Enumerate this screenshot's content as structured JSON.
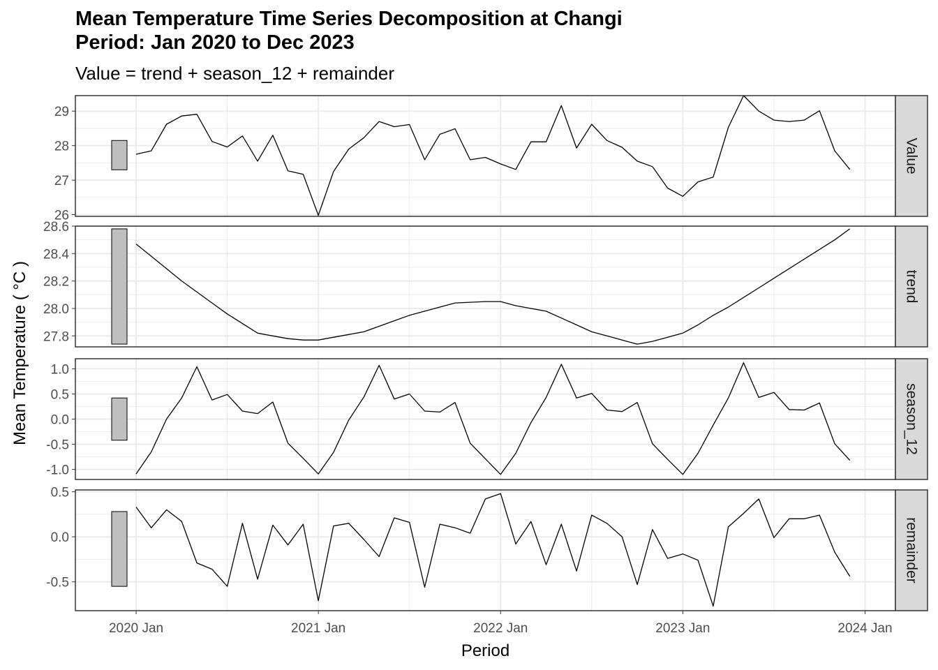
{
  "title_line1": "Mean Temperature Time Series Decomposition at Changi",
  "title_line2": "Period: Jan 2020 to Dec 2023",
  "subtitle": "Value = trend + season_12 + remainder",
  "colors": {
    "panel_border": "#333333",
    "grid": "#ebebeb",
    "strip_fill": "#d9d9d9",
    "line": "#000000",
    "scale_bar": "#bfbfbf"
  },
  "chart_data": {
    "type": "line",
    "xlabel": "Period",
    "ylabel": "Mean Temperature ( °C )",
    "x_tick_labels": [
      "2020 Jan",
      "2021 Jan",
      "2022 Jan",
      "2023 Jan",
      "2024 Jan"
    ],
    "x_range": [
      "2019-09",
      "2024-03"
    ],
    "x": [
      "2020-01",
      "2020-02",
      "2020-03",
      "2020-04",
      "2020-05",
      "2020-06",
      "2020-07",
      "2020-08",
      "2020-09",
      "2020-10",
      "2020-11",
      "2020-12",
      "2021-01",
      "2021-02",
      "2021-03",
      "2021-04",
      "2021-05",
      "2021-06",
      "2021-07",
      "2021-08",
      "2021-09",
      "2021-10",
      "2021-11",
      "2021-12",
      "2022-01",
      "2022-02",
      "2022-03",
      "2022-04",
      "2022-05",
      "2022-06",
      "2022-07",
      "2022-08",
      "2022-09",
      "2022-10",
      "2022-11",
      "2022-12",
      "2023-01",
      "2023-02",
      "2023-03",
      "2023-04",
      "2023-05",
      "2023-06",
      "2023-07",
      "2023-08",
      "2023-09",
      "2023-10",
      "2023-11",
      "2023-12"
    ],
    "grid": true,
    "panels": [
      {
        "name": "Value",
        "ylim": [
          25.95,
          29.45
        ],
        "ticks": [
          26,
          27,
          28,
          29
        ],
        "tick_labels": [
          "26",
          "27",
          "28",
          "29"
        ],
        "scale_bar": [
          27.3,
          28.15
        ],
        "values": [
          27.75,
          27.85,
          28.62,
          28.86,
          28.91,
          28.12,
          27.96,
          28.28,
          27.55,
          28.3,
          27.27,
          27.17,
          25.98,
          27.25,
          27.9,
          28.23,
          28.7,
          28.55,
          28.61,
          27.59,
          28.33,
          28.49,
          27.59,
          27.66,
          27.47,
          27.31,
          28.11,
          28.11,
          29.16,
          27.93,
          28.62,
          28.15,
          27.95,
          27.55,
          27.39,
          26.77,
          26.53,
          26.95,
          27.09,
          28.53,
          29.45,
          29.0,
          28.74,
          28.7,
          28.74,
          29.01,
          27.85,
          27.31
        ]
      },
      {
        "name": "trend",
        "ylim": [
          27.72,
          28.6
        ],
        "ticks": [
          27.8,
          28.0,
          28.2,
          28.4,
          28.6
        ],
        "tick_labels": [
          "27.8",
          "28.0",
          "28.2",
          "28.4",
          "28.6"
        ],
        "scale_bar": [
          27.74,
          28.58
        ],
        "values": [
          28.47,
          28.38,
          28.29,
          28.2,
          28.12,
          28.04,
          27.96,
          27.89,
          27.82,
          27.8,
          27.78,
          27.77,
          27.77,
          27.79,
          27.81,
          27.83,
          27.87,
          27.91,
          27.95,
          27.98,
          28.01,
          28.04,
          28.045,
          28.05,
          28.05,
          28.02,
          28.0,
          27.98,
          27.93,
          27.88,
          27.83,
          27.8,
          27.77,
          27.74,
          27.76,
          27.79,
          27.82,
          27.88,
          27.95,
          28.01,
          28.08,
          28.15,
          28.22,
          28.29,
          28.36,
          28.43,
          28.5,
          28.58
        ]
      },
      {
        "name": "season_12",
        "ylim": [
          -1.2,
          1.2
        ],
        "ticks": [
          -1.0,
          -0.5,
          0.0,
          0.5,
          1.0
        ],
        "tick_labels": [
          "-1.0",
          "-0.5",
          "0.0",
          "0.5",
          "1.0"
        ],
        "scale_bar": [
          -0.42,
          0.42
        ],
        "values": [
          -1.09,
          -0.65,
          0.0,
          0.42,
          1.04,
          0.38,
          0.49,
          0.16,
          0.11,
          0.34,
          -0.48,
          -0.78,
          -1.09,
          -0.66,
          -0.02,
          0.44,
          1.07,
          0.4,
          0.5,
          0.16,
          0.14,
          0.33,
          -0.48,
          -0.79,
          -1.1,
          -0.68,
          -0.07,
          0.43,
          1.09,
          0.42,
          0.51,
          0.18,
          0.15,
          0.33,
          -0.49,
          -0.8,
          -1.1,
          -0.68,
          -0.12,
          0.42,
          1.12,
          0.43,
          0.53,
          0.19,
          0.18,
          0.32,
          -0.49,
          -0.82
        ]
      },
      {
        "name": "remainder",
        "ylim": [
          -0.82,
          0.52
        ],
        "ticks": [
          -0.5,
          0.0,
          0.5
        ],
        "tick_labels": [
          "-0.5",
          "0.0",
          "0.5"
        ],
        "scale_bar": [
          -0.55,
          0.28
        ],
        "values": [
          0.33,
          0.1,
          0.3,
          0.17,
          -0.29,
          -0.36,
          -0.55,
          0.15,
          -0.47,
          0.13,
          -0.09,
          0.14,
          -0.71,
          0.12,
          0.15,
          -0.03,
          -0.22,
          0.21,
          0.16,
          -0.56,
          0.14,
          0.1,
          0.04,
          0.42,
          0.48,
          -0.08,
          0.17,
          -0.31,
          0.14,
          -0.38,
          0.24,
          0.15,
          0.0,
          -0.53,
          0.08,
          -0.24,
          -0.19,
          -0.26,
          -0.77,
          0.11,
          0.26,
          0.42,
          -0.01,
          0.2,
          0.2,
          0.24,
          -0.17,
          -0.44
        ]
      }
    ]
  }
}
